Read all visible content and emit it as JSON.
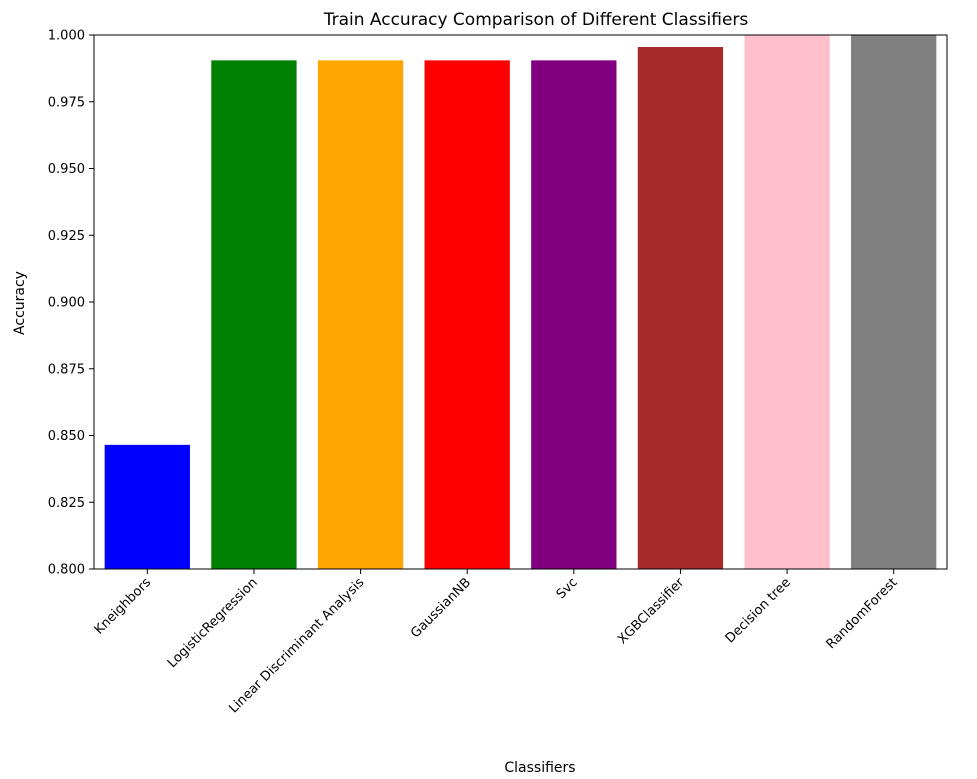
{
  "chart_data": {
    "type": "bar",
    "title": "Train Accuracy Comparison of Different Classifiers",
    "xlabel": "Classifiers",
    "ylabel": "Accuracy",
    "ylim": [
      0.8,
      1.0
    ],
    "yticks": [
      "0.800",
      "0.825",
      "0.850",
      "0.875",
      "0.900",
      "0.925",
      "0.950",
      "0.975",
      "1.000"
    ],
    "categories": [
      "Kneighbors",
      "LogisticRegression",
      "Linear Discriminant Analysis",
      "GaussianNB",
      "Svc",
      "XGBClassifier",
      "Decision tree",
      "RandomForest"
    ],
    "values": [
      0.8465,
      0.9905,
      0.9905,
      0.9905,
      0.9905,
      0.9955,
      1.0,
      1.0
    ],
    "colors": [
      "#0000ff",
      "#008000",
      "#ffa500",
      "#ff0000",
      "#800080",
      "#a52a2a",
      "#ffc0cb",
      "#808080"
    ],
    "grid": false,
    "legend": false
  }
}
